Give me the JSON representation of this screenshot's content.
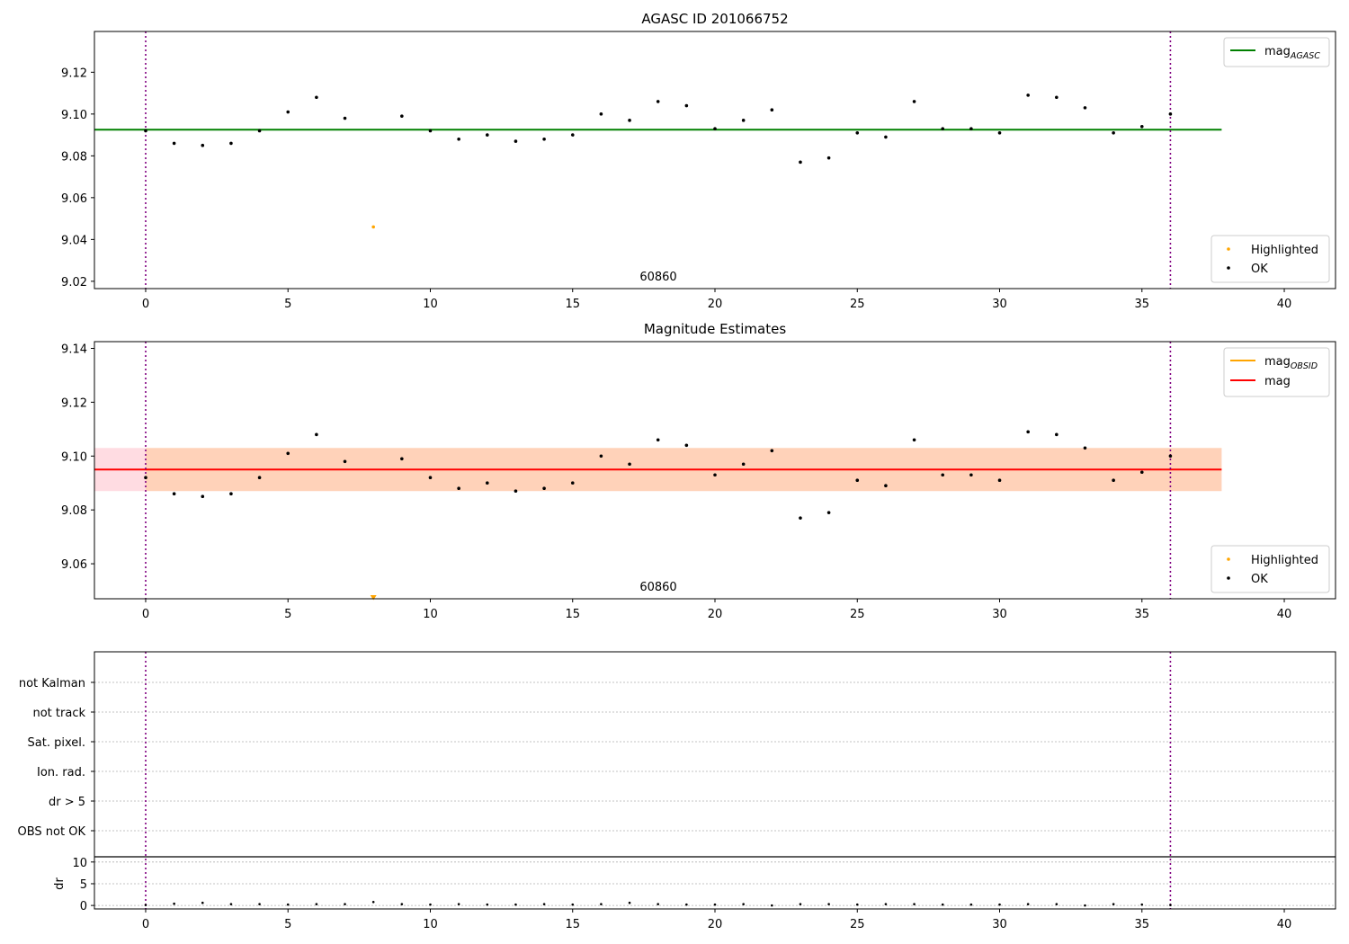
{
  "chart_data": [
    {
      "type": "scatter",
      "title": "AGASC ID 201066752",
      "annotation": "60860",
      "xlim": [
        -1.8,
        41.8
      ],
      "ylim": [
        9.0165,
        9.1395
      ],
      "xticks": [
        0,
        5,
        10,
        15,
        20,
        25,
        30,
        35,
        40
      ],
      "yticks": [
        9.02,
        9.04,
        9.06,
        9.08,
        9.1,
        9.12
      ],
      "ytick_labels": [
        "9.02",
        "9.04",
        "9.06",
        "9.08",
        "9.10",
        "9.12"
      ],
      "vlines": [
        0,
        36
      ],
      "hline": {
        "name": "mag_AGASC",
        "y": 9.0925,
        "x_range": [
          -1.8,
          37.8
        ],
        "color": "#008000"
      },
      "legend_lines": [
        {
          "label": "mag",
          "sub": "AGASC",
          "color": "#008000"
        }
      ],
      "legend_points": [
        {
          "label": "Highlighted",
          "color": "#ffa500"
        },
        {
          "label": "OK",
          "color": "#000000"
        }
      ],
      "series": [
        {
          "name": "OK",
          "color": "#000000",
          "x": [
            0,
            1,
            2,
            3,
            4,
            5,
            6,
            7,
            9,
            10,
            11,
            12,
            13,
            14,
            15,
            16,
            17,
            18,
            19,
            20,
            21,
            22,
            23,
            24,
            25,
            26,
            27,
            28,
            29,
            30,
            31,
            32,
            33,
            34,
            35,
            36
          ],
          "y": [
            9.092,
            9.086,
            9.085,
            9.086,
            9.092,
            9.101,
            9.108,
            9.098,
            9.099,
            9.092,
            9.088,
            9.09,
            9.087,
            9.088,
            9.09,
            9.1,
            9.097,
            9.106,
            9.104,
            9.093,
            9.097,
            9.102,
            9.077,
            9.079,
            9.091,
            9.089,
            9.106,
            9.093,
            9.093,
            9.091,
            9.109,
            9.108,
            9.103,
            9.091,
            9.094,
            9.1
          ]
        },
        {
          "name": "Highlighted",
          "color": "#ffa500",
          "x": [
            8
          ],
          "y": [
            9.046
          ]
        }
      ]
    },
    {
      "type": "scatter",
      "title": "Magnitude Estimates",
      "annotation": "60860",
      "xlim": [
        -1.8,
        41.8
      ],
      "ylim": [
        9.047,
        9.1425
      ],
      "xticks": [
        0,
        5,
        10,
        15,
        20,
        25,
        30,
        35,
        40
      ],
      "yticks": [
        9.06,
        9.08,
        9.1,
        9.12,
        9.14
      ],
      "ytick_labels": [
        "9.06",
        "9.08",
        "9.10",
        "9.12",
        "9.14"
      ],
      "vlines": [
        0,
        36
      ],
      "hline": {
        "name": "mag",
        "y": 9.095,
        "x_range": [
          -1.8,
          37.8
        ],
        "color": "#ff0000"
      },
      "band_pink": {
        "y_range": [
          9.087,
          9.103
        ],
        "x_range": [
          -1.8,
          37.8
        ]
      },
      "band_orange": {
        "y_range": [
          9.087,
          9.103
        ],
        "x_range": [
          0,
          37.8
        ]
      },
      "legend_lines": [
        {
          "label": "mag",
          "sub": "OBSID",
          "color": "#ffa500"
        },
        {
          "label": "mag",
          "sub": "",
          "color": "#ff0000"
        }
      ],
      "legend_points": [
        {
          "label": "Highlighted",
          "color": "#ffa500"
        },
        {
          "label": "OK",
          "color": "#000000"
        }
      ],
      "series": [
        {
          "name": "OK",
          "color": "#000000",
          "x": [
            0,
            1,
            2,
            3,
            4,
            5,
            6,
            7,
            9,
            10,
            11,
            12,
            13,
            14,
            15,
            16,
            17,
            18,
            19,
            20,
            21,
            22,
            23,
            24,
            25,
            26,
            27,
            28,
            29,
            30,
            31,
            32,
            33,
            34,
            35,
            36
          ],
          "y": [
            9.092,
            9.086,
            9.085,
            9.086,
            9.092,
            9.101,
            9.108,
            9.098,
            9.099,
            9.092,
            9.088,
            9.09,
            9.087,
            9.088,
            9.09,
            9.1,
            9.097,
            9.106,
            9.104,
            9.093,
            9.097,
            9.102,
            9.077,
            9.079,
            9.091,
            9.089,
            9.106,
            9.093,
            9.093,
            9.091,
            9.109,
            9.108,
            9.103,
            9.091,
            9.094,
            9.1
          ]
        },
        {
          "name": "Highlighted",
          "color": "#ffa500",
          "x": [
            8
          ],
          "y": [
            9.047
          ],
          "marker": "triangle-down"
        }
      ]
    },
    {
      "type": "scatter",
      "title": "",
      "xlim": [
        -1.8,
        41.8
      ],
      "vlines": [
        0,
        36
      ],
      "flag_labels": [
        "not Kalman",
        "not track",
        "Sat. pixel.",
        "Ion. rad.",
        "dr > 5",
        "OBS not OK"
      ],
      "ylabel": "dr",
      "dr_ylim": [
        -0.8,
        11.2
      ],
      "dr_yticks": [
        0,
        5,
        10
      ],
      "dr_ytick_labels": [
        "0",
        "5",
        "10"
      ],
      "xticks": [
        0,
        5,
        10,
        15,
        20,
        25,
        30,
        35,
        40
      ],
      "series": [
        {
          "name": "dr",
          "color": "#000000",
          "x": [
            0,
            1,
            2,
            3,
            4,
            5,
            6,
            7,
            8,
            9,
            10,
            11,
            12,
            13,
            14,
            15,
            16,
            17,
            18,
            19,
            20,
            21,
            22,
            23,
            24,
            25,
            26,
            27,
            28,
            29,
            30,
            31,
            32,
            33,
            34,
            35,
            36
          ],
          "y": [
            0.1,
            0.4,
            0.6,
            0.3,
            0.3,
            0.2,
            0.3,
            0.3,
            0.8,
            0.3,
            0.2,
            0.3,
            0.2,
            0.2,
            0.3,
            0.2,
            0.3,
            0.6,
            0.3,
            0.2,
            0.2,
            0.3,
            0.0,
            0.3,
            0.3,
            0.2,
            0.3,
            0.3,
            0.2,
            0.2,
            0.2,
            0.3,
            0.3,
            0.0,
            0.3,
            0.2,
            0.1
          ]
        }
      ]
    }
  ]
}
